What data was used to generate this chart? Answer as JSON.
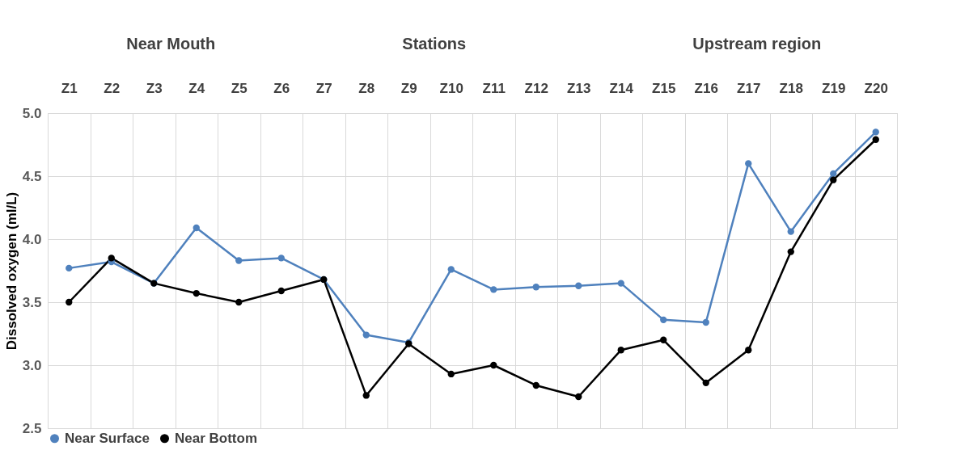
{
  "chart_data": {
    "type": "line",
    "ylabel": "Dissolved oxygen (ml/L)",
    "annotations": [
      "Near Mouth",
      "Stations",
      "Upstream region"
    ],
    "categories": [
      "Z1",
      "Z2",
      "Z3",
      "Z4",
      "Z5",
      "Z6",
      "Z7",
      "Z8",
      "Z9",
      "Z10",
      "Z11",
      "Z12",
      "Z13",
      "Z14",
      "Z15",
      "Z16",
      "Z17",
      "Z18",
      "Z19",
      "Z20"
    ],
    "series": [
      {
        "name": "Near Surface",
        "color": "#4f81bd",
        "values": [
          3.77,
          3.82,
          3.65,
          4.09,
          3.83,
          3.85,
          3.68,
          3.24,
          3.18,
          3.76,
          3.6,
          3.62,
          3.63,
          3.65,
          3.36,
          3.34,
          4.6,
          4.06,
          4.52,
          4.85
        ]
      },
      {
        "name": "Near Bottom",
        "color": "#000000",
        "values": [
          3.5,
          3.85,
          3.65,
          3.57,
          3.5,
          3.59,
          3.68,
          2.76,
          3.17,
          2.93,
          3.0,
          2.84,
          2.75,
          3.12,
          3.2,
          2.86,
          3.12,
          3.9,
          4.47,
          4.79
        ]
      }
    ],
    "ylim": [
      2.5,
      5.0
    ],
    "yticks": [
      2.5,
      {
        "value": 3,
        "label": "3.0"
      },
      3.5,
      {
        "value": 4,
        "label": "4.0"
      },
      4.5,
      {
        "value": 5,
        "label": "5.0"
      }
    ],
    "grid": true,
    "legend": "bottom",
    "marker": "circle",
    "line_style": "solid"
  }
}
